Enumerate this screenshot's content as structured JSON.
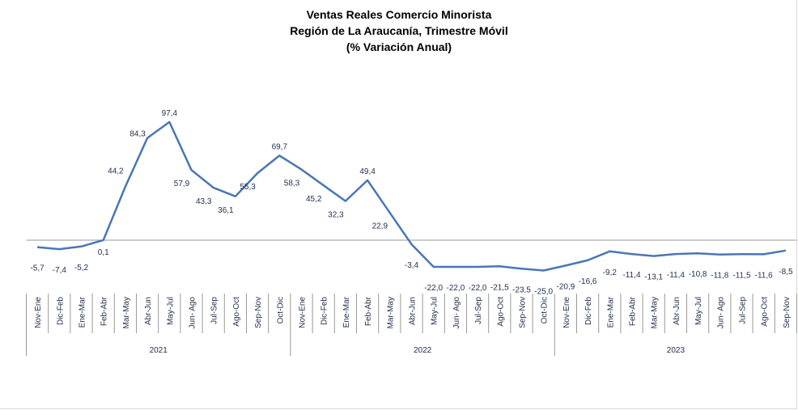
{
  "chart_data": {
    "type": "line",
    "title": [
      "Ventas Reales Comercio Minorista",
      "Región de La Araucanía, Trimestre Móvil",
      "(% Variación Anual)"
    ],
    "xlabel": "",
    "ylabel": "",
    "ylim": [
      -35,
      110
    ],
    "grid": false,
    "legend": "none",
    "line_color": "#4a76b5",
    "x": [
      "Nov-Ene",
      "Dic-Feb",
      "Ene-Mar",
      "Feb-Abr",
      "Mar-May",
      "Abr-Jun",
      "May-Jul",
      "Jun- Ago",
      "Jul-Sep",
      "Ago-Oct",
      "Sep-Nov",
      "Oct-Dic",
      "Nov-Ene",
      "Dic-Feb",
      "Ene-Mar",
      "Feb-Abr",
      "Mar-May",
      "Abr-Jun",
      "May-Jul",
      "Jun- Ago",
      "Jul-Sep",
      "Ago-Oct",
      "Sep-Nov",
      "Oct-Dic",
      "Nov-Ene",
      "Dic-Feb",
      "Ene-Mar",
      "Feb-Abr",
      "Mar-May",
      "Abr-Jun",
      "May-Jul",
      "Jun- Ago",
      "Jul-Sep",
      "Ago-Oct",
      "Sep-Nov"
    ],
    "values": [
      -5.7,
      -7.4,
      -5.2,
      0.1,
      44.2,
      84.3,
      97.4,
      57.9,
      43.3,
      36.1,
      55.3,
      69.7,
      58.3,
      45.2,
      32.3,
      49.4,
      22.9,
      -3.4,
      -22.0,
      -22.0,
      -22.0,
      -21.5,
      -23.5,
      -25.0,
      -20.9,
      -16.6,
      -9.2,
      -11.4,
      -13.1,
      -11.4,
      -10.8,
      -11.8,
      -11.5,
      -11.6,
      -8.5
    ],
    "data_labels": [
      "-5,7",
      "-7,4",
      "-5,2",
      "0,1",
      "44,2",
      "84,3",
      "97,4",
      "57,9",
      "43,3",
      "36,1",
      "55,3",
      "69,7",
      "58,3",
      "45,2",
      "32,3",
      "49,4",
      "22,9",
      "-3,4",
      "-22,0",
      "-22,0",
      "-22,0",
      "-21,5",
      "-23,5",
      "-25,0",
      "-20,9",
      "-16,6",
      "-9,2",
      "-11,4",
      "-13,1",
      "-11,4",
      "-10,8",
      "-11,8",
      "-11,5",
      "-11,6",
      "-8,5"
    ],
    "years": [
      {
        "label": "2021",
        "count": 12
      },
      {
        "label": "2022",
        "count": 12
      },
      {
        "label": "2023",
        "count": 11
      }
    ]
  }
}
